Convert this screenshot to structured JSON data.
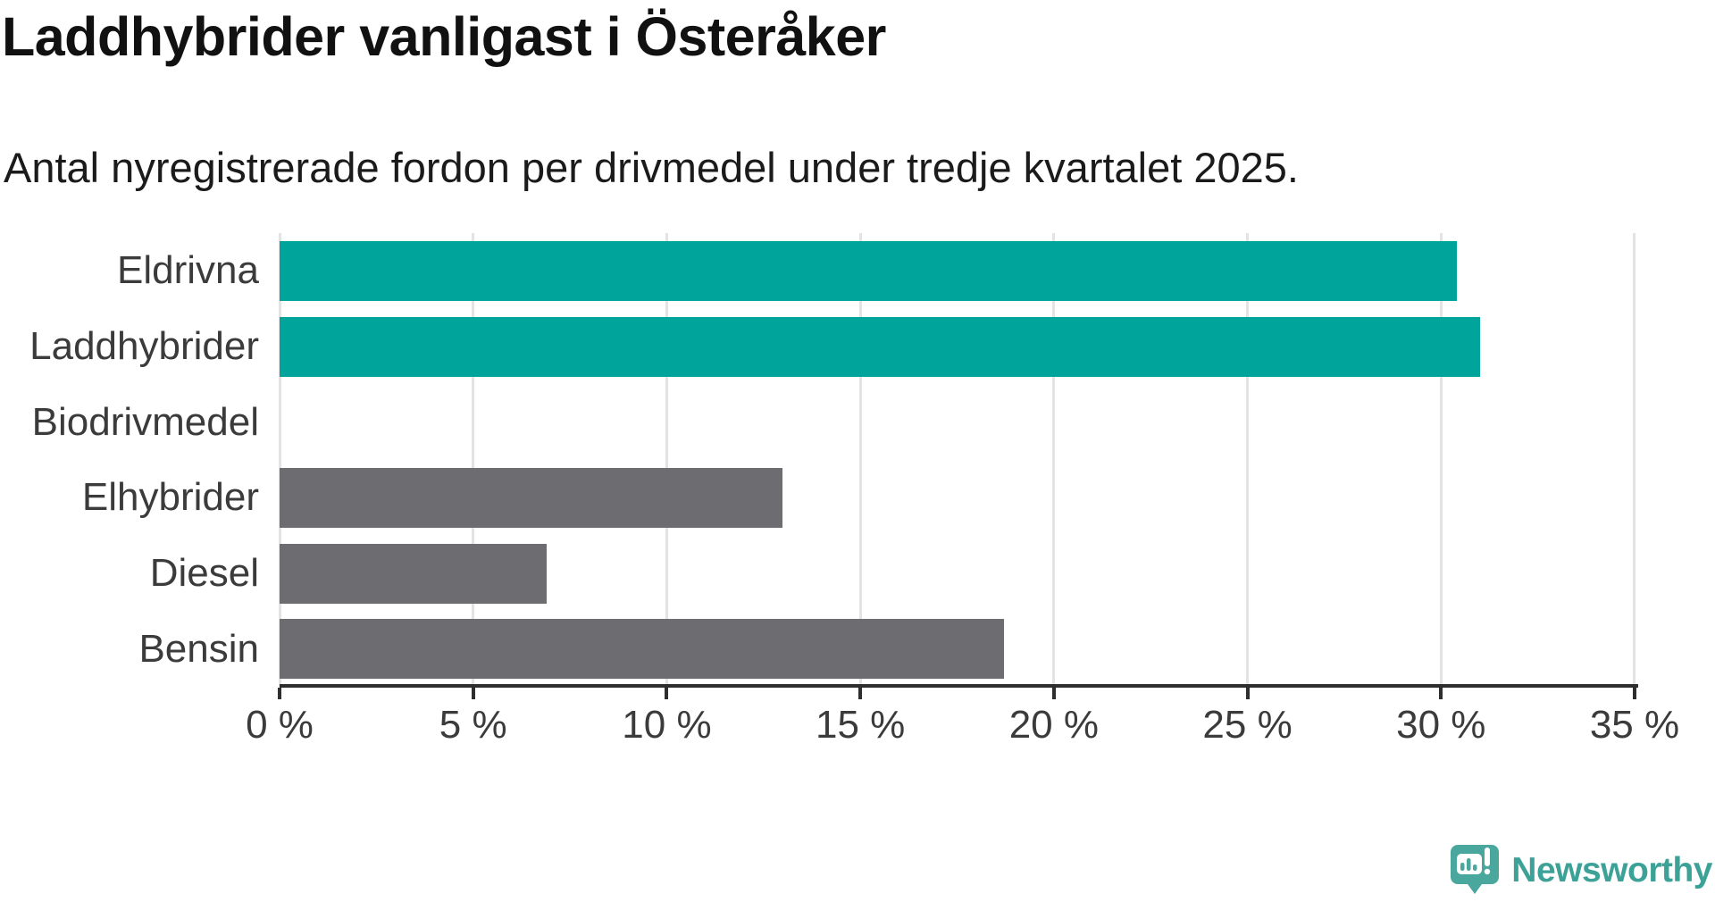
{
  "title": "Laddhybrider vanligast i Österåker",
  "subtitle": "Antal nyregistrerade fordon per drivmedel under tredje kvartalet 2025.",
  "chart_data": {
    "type": "bar",
    "orientation": "horizontal",
    "title": "Laddhybrider vanligast i Österåker",
    "subtitle": "Antal nyregistrerade fordon per drivmedel under tredje kvartalet 2025.",
    "categories": [
      "Eldrivna",
      "Laddhybrider",
      "Biodrivmedel",
      "Elhybrider",
      "Diesel",
      "Bensin"
    ],
    "values": [
      30.4,
      31.0,
      0,
      13.0,
      6.9,
      18.7
    ],
    "unit": "%",
    "xlabel": "",
    "ylabel": "",
    "xlim": [
      0,
      35.3
    ],
    "x_ticks": [
      0,
      5,
      10,
      15,
      20,
      25,
      30,
      35
    ],
    "x_tick_labels": [
      "0 %",
      "5 %",
      "10 %",
      "15 %",
      "20 %",
      "25 %",
      "30 %",
      "35 %"
    ],
    "bar_colors": [
      "#00a49a",
      "#00a49a",
      "#6c6c71",
      "#6c6c71",
      "#6c6c71",
      "#6c6c71"
    ],
    "highlight_color": "#00a49a",
    "default_color": "#6c6c71",
    "grid": true,
    "legend": false
  },
  "colors": {
    "gridline": "#e3e3e3",
    "axis": "#2e2e2e",
    "label": "#3b3b3b",
    "logo": "#4aa79d",
    "logo_text": "#3ca197"
  },
  "branding": {
    "logo_text": "Newsworthy"
  }
}
